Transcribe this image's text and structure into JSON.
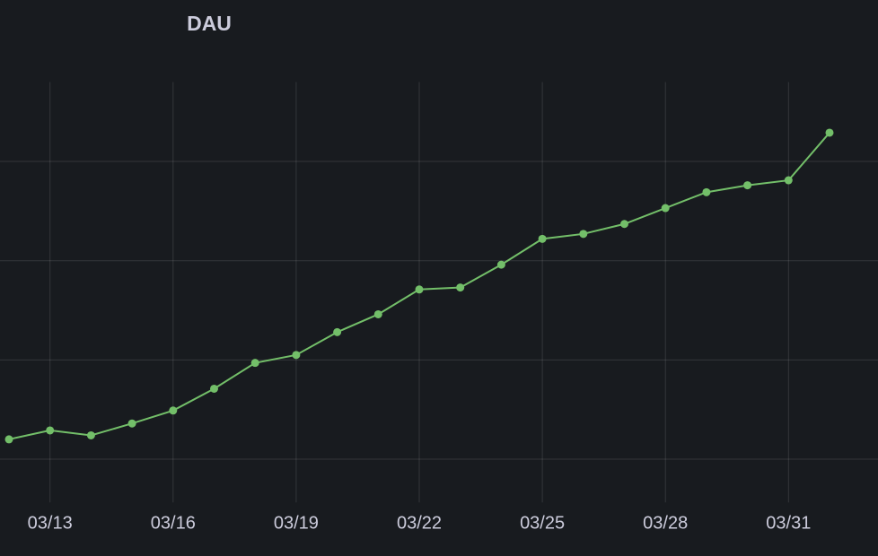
{
  "chart_data": {
    "type": "line",
    "title": "DAU",
    "categories": [
      null,
      "03/13",
      null,
      null,
      "03/16",
      null,
      null,
      "03/19",
      null,
      null,
      "03/22",
      null,
      null,
      "03/25",
      null,
      null,
      "03/28",
      null,
      null,
      "03/31",
      null
    ],
    "series": [
      {
        "color": "#73bf69",
        "values": [
          1.2,
          1.29,
          1.24,
          1.36,
          1.49,
          1.71,
          1.97,
          2.05,
          2.28,
          2.46,
          2.71,
          2.73,
          2.96,
          3.22,
          3.27,
          3.37,
          3.53,
          3.69,
          3.76,
          3.81,
          4.29
        ]
      }
    ],
    "ylim": [
      0.6,
      4.8
    ],
    "yticks": [
      1,
      2,
      3,
      4
    ],
    "grid": true
  }
}
